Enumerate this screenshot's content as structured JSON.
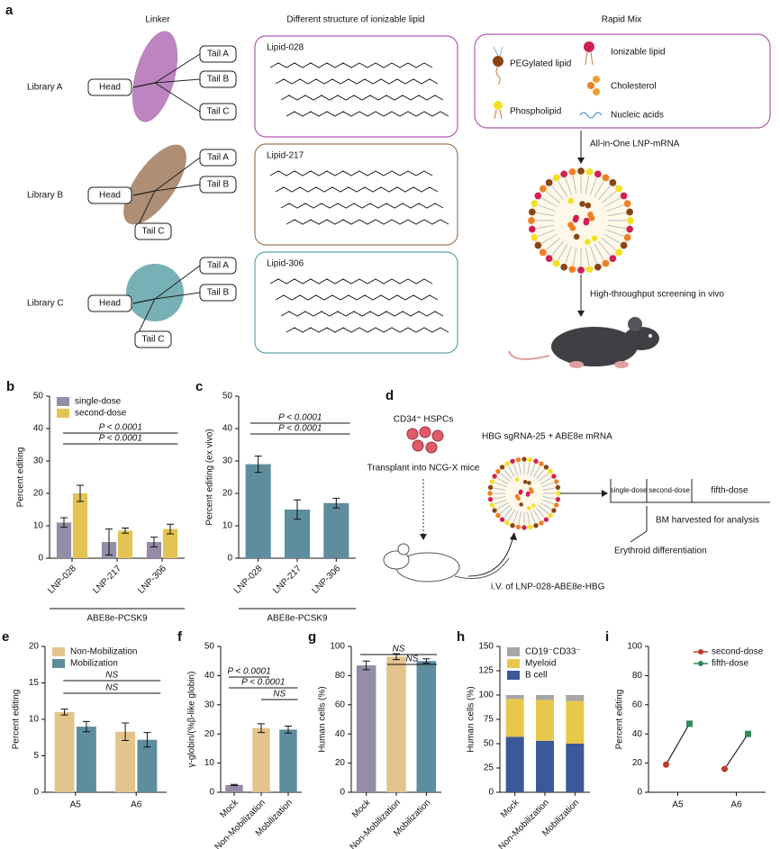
{
  "figure": {
    "panel_a": {
      "letter": "a",
      "headings": [
        "Linker",
        "Different structure of ionizable lipid",
        "Rapid Mix"
      ],
      "libraries": [
        {
          "name": "Library A",
          "head": "Head",
          "tails": [
            "Tail A",
            "Tail B",
            "Tail C"
          ],
          "lipid": "Lipid-028"
        },
        {
          "name": "Library B",
          "head": "Head",
          "tails": [
            "Tail A",
            "Tail B",
            "Tail C"
          ],
          "lipid": "Lipid-217"
        },
        {
          "name": "Library C",
          "head": "Head",
          "tails": [
            "Tail A",
            "Tail B",
            "Tail C"
          ],
          "lipid": "Lipid-306"
        }
      ],
      "components": [
        "PEGylated lipid",
        "Ionizable lipid",
        "Cholesterol",
        "Phospholipid",
        "Nucleic acids"
      ],
      "steps": [
        "All-in-One LNP-mRNA",
        "High-throughput screening in vivo"
      ]
    },
    "panel_d": {
      "letter": "d",
      "cells": "CD34⁺ HSPCs",
      "transplant": "Transplant into NCG-X mice",
      "treatment": "HBG sgRNA-25 + ABE8e mRNA",
      "doses": [
        "single-dose",
        "second-dose",
        "fifth-dose"
      ],
      "analysis": "BM harvested for analysis",
      "differentiation": "Erythroid differentiation",
      "injection": "i.V. of LNP-028-ABE8e-HBG"
    }
  },
  "chart_data": [
    {
      "panel": "b",
      "type": "bar",
      "ylabel": "Percent editing",
      "categories": [
        "LNP-028",
        "LNP-217",
        "LNP-306"
      ],
      "group": "ABE8e-PCSK9",
      "series": [
        {
          "name": "single-dose",
          "color": "#958ca8",
          "values": [
            11,
            5,
            5
          ],
          "errors": [
            1.5,
            4,
            1.5
          ]
        },
        {
          "name": "second-dose",
          "color": "#e3c453",
          "values": [
            20,
            8.5,
            9
          ],
          "errors": [
            2.5,
            0.8,
            1.5
          ]
        }
      ],
      "ylim": [
        0,
        50
      ],
      "yticks": [
        0,
        10,
        20,
        30,
        40,
        50
      ],
      "annotations": [
        "P < 0.0001",
        "P < 0.0001"
      ],
      "legend": "upper left"
    },
    {
      "panel": "c",
      "type": "bar",
      "ylabel": "Percent editing (ex vivo)",
      "categories": [
        "LNP-028",
        "LNP-217",
        "LNP-306"
      ],
      "group": "ABE8e-PCSK9",
      "values": [
        29,
        15,
        17
      ],
      "errors": [
        2.5,
        3,
        1.5
      ],
      "color": "#5e8d9d",
      "ylim": [
        0,
        50
      ],
      "yticks": [
        0,
        10,
        20,
        30,
        40,
        50
      ],
      "annotations": [
        "P < 0.0001",
        "P < 0.0001"
      ]
    },
    {
      "panel": "e",
      "type": "bar",
      "ylabel": "Percent editing",
      "categories": [
        "A5",
        "A6"
      ],
      "series": [
        {
          "name": "Non-Mobilization",
          "color": "#e2c48c",
          "values": [
            11,
            8.3
          ],
          "errors": [
            0.4,
            1.2
          ]
        },
        {
          "name": "Mobilization",
          "color": "#5e8d9d",
          "values": [
            9,
            7.2
          ],
          "errors": [
            0.7,
            1
          ]
        }
      ],
      "ylim": [
        0,
        20
      ],
      "yticks": [
        0,
        5,
        10,
        15,
        20
      ],
      "annotations": [
        "NS",
        "NS"
      ],
      "legend": "upper left"
    },
    {
      "panel": "f",
      "type": "bar",
      "ylabel": "γ-globin/(%β-like globin)",
      "categories": [
        "Mock",
        "Non-Mobilization",
        "Mobilization"
      ],
      "values": [
        2.5,
        22,
        21.5
      ],
      "errors": [
        0.2,
        1.5,
        1.2
      ],
      "colors": [
        "#958ca8",
        "#e2c48c",
        "#5e8d9d"
      ],
      "ylim": [
        0,
        50
      ],
      "yticks": [
        0,
        10,
        20,
        30,
        40,
        50
      ],
      "annotations": [
        "P < 0.0001",
        "P < 0.0001",
        "NS"
      ]
    },
    {
      "panel": "g",
      "type": "bar",
      "ylabel": "Human cells (%)",
      "categories": [
        "Mock",
        "Non-Mobilization",
        "Mobilization"
      ],
      "values": [
        87,
        93,
        90
      ],
      "errors": [
        3,
        2,
        1.5
      ],
      "colors": [
        "#958ca8",
        "#e2c48c",
        "#5e8d9d"
      ],
      "ylim": [
        0,
        100
      ],
      "yticks": [
        0,
        20,
        40,
        60,
        80,
        100
      ],
      "annotations": [
        "NS",
        "NS"
      ]
    },
    {
      "panel": "h",
      "type": "stacked-bar",
      "ylabel": "Human cells (%)",
      "categories": [
        "Mock",
        "Non-Mobilization",
        "Mobilization"
      ],
      "series": [
        {
          "name": "B cell",
          "color": "#3b5998",
          "values": [
            57,
            53,
            50
          ]
        },
        {
          "name": "Myeloid",
          "color": "#e8c84a",
          "values": [
            39,
            42,
            44
          ]
        },
        {
          "name": "CD19⁻CD33⁻",
          "color": "#a6a6a6",
          "values": [
            4,
            5,
            6
          ]
        }
      ],
      "ylim": [
        0,
        150
      ],
      "yticks": [
        0,
        25,
        50,
        75,
        100,
        125,
        150
      ],
      "legend": "upper left"
    },
    {
      "panel": "i",
      "type": "line",
      "ylabel": "Percent editing",
      "categories": [
        "A5",
        "A6"
      ],
      "series": [
        {
          "name": "second-dose",
          "color": "#c0392b",
          "values": [
            19,
            16
          ]
        },
        {
          "name": "fifth-dose",
          "color": "#2e8b57",
          "values": [
            47,
            40
          ]
        }
      ],
      "ylim": [
        0,
        100
      ],
      "yticks": [
        0,
        20,
        40,
        60,
        80,
        100
      ],
      "legend": "upper right"
    }
  ]
}
